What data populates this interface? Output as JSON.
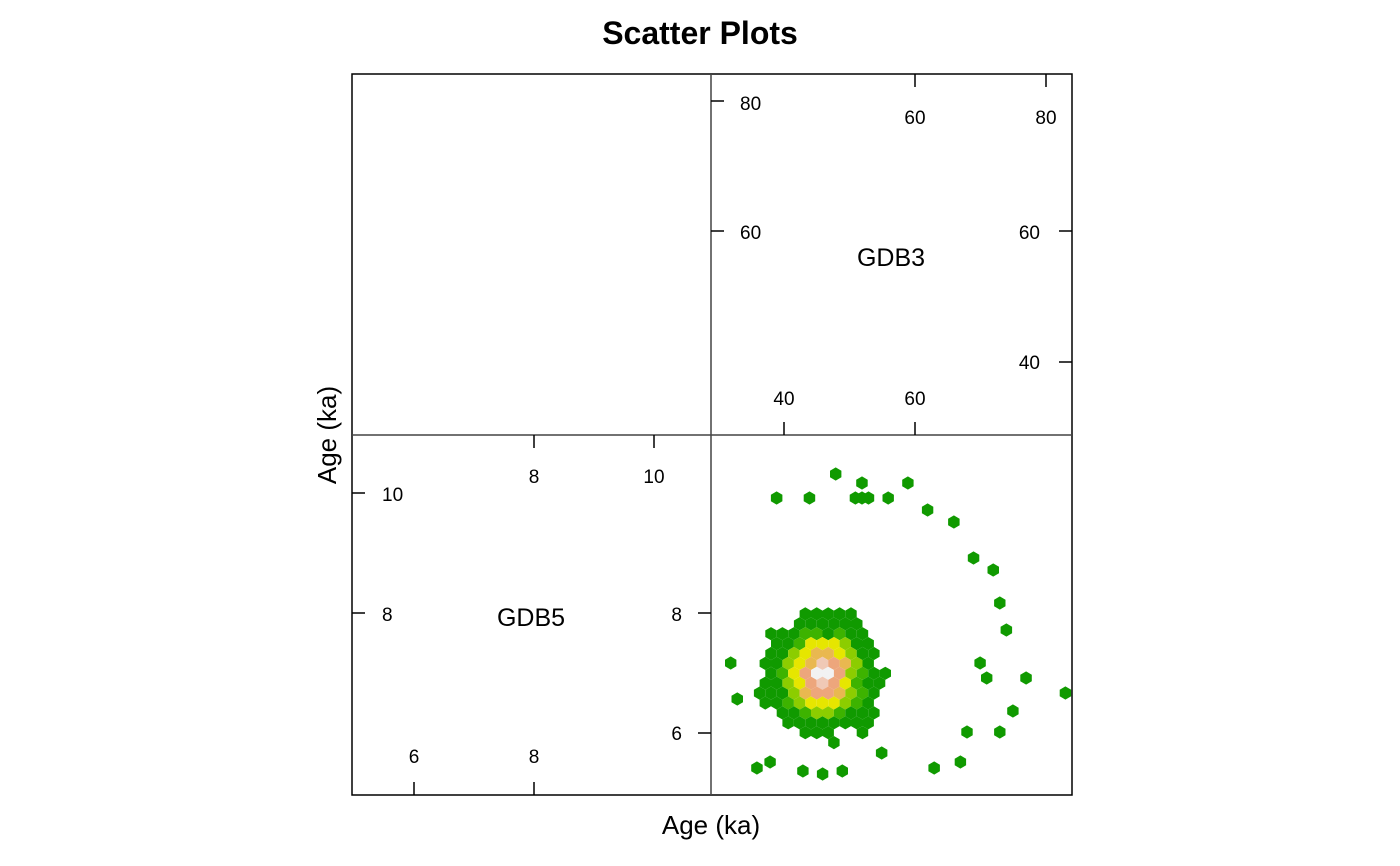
{
  "chart_data": {
    "type": "scatter",
    "subtype": "hexbin-scatterplot-matrix",
    "title": "Scatter Plots",
    "xlabel": "Age (ka)",
    "ylabel": "Age (ka)",
    "variables": [
      {
        "name": "GDB5",
        "range": [
          5.0,
          11.0
        ],
        "ticks_low": [
          6,
          8
        ],
        "ticks_high": [
          8,
          10
        ],
        "ticks_low_labels": [
          "6",
          "8"
        ],
        "ticks_high_labels": [
          "8",
          "10"
        ]
      },
      {
        "name": "GDB3",
        "range": [
          29.0,
          84.0
        ],
        "ticks_low": [
          40,
          60
        ],
        "ticks_high": [
          60,
          80
        ],
        "ticks_low_labels": [
          "40",
          "60"
        ],
        "ticks_high_labels": [
          "60",
          "80"
        ]
      }
    ],
    "panel": {
      "x_variable": "GDB3",
      "y_variable": "GDB5",
      "x_range": [
        29.0,
        84.0
      ],
      "y_range": [
        5.0,
        11.0
      ],
      "center": [
        46,
        7.0
      ],
      "spread": [
        5.5,
        0.65
      ]
    },
    "color_scale": [
      "#109a00",
      "#3db300",
      "#8ccd00",
      "#e6e600",
      "#e9b850",
      "#eda67c",
      "#f0c9b6",
      "#f2f2f2"
    ],
    "isolated_points": [
      [
        48,
        10.35
      ],
      [
        52,
        10.2
      ],
      [
        59,
        10.2
      ],
      [
        39,
        9.95
      ],
      [
        44,
        9.95
      ],
      [
        51,
        9.95
      ],
      [
        52,
        9.95
      ],
      [
        53,
        9.95
      ],
      [
        56,
        9.95
      ],
      [
        62,
        9.75
      ],
      [
        66,
        9.55
      ],
      [
        69,
        8.95
      ],
      [
        72,
        8.75
      ],
      [
        73,
        8.2
      ],
      [
        74,
        7.75
      ],
      [
        70,
        7.2
      ],
      [
        71,
        6.95
      ],
      [
        77,
        6.95
      ],
      [
        75,
        6.4
      ],
      [
        83,
        6.7
      ],
      [
        73,
        6.05
      ],
      [
        68,
        6.05
      ],
      [
        67,
        5.55
      ],
      [
        63,
        5.45
      ],
      [
        55,
        5.7
      ],
      [
        49,
        5.4
      ],
      [
        46,
        5.35
      ],
      [
        38,
        5.55
      ],
      [
        43,
        5.4
      ],
      [
        36,
        5.45
      ],
      [
        33,
        6.6
      ],
      [
        32,
        7.2
      ]
    ]
  }
}
